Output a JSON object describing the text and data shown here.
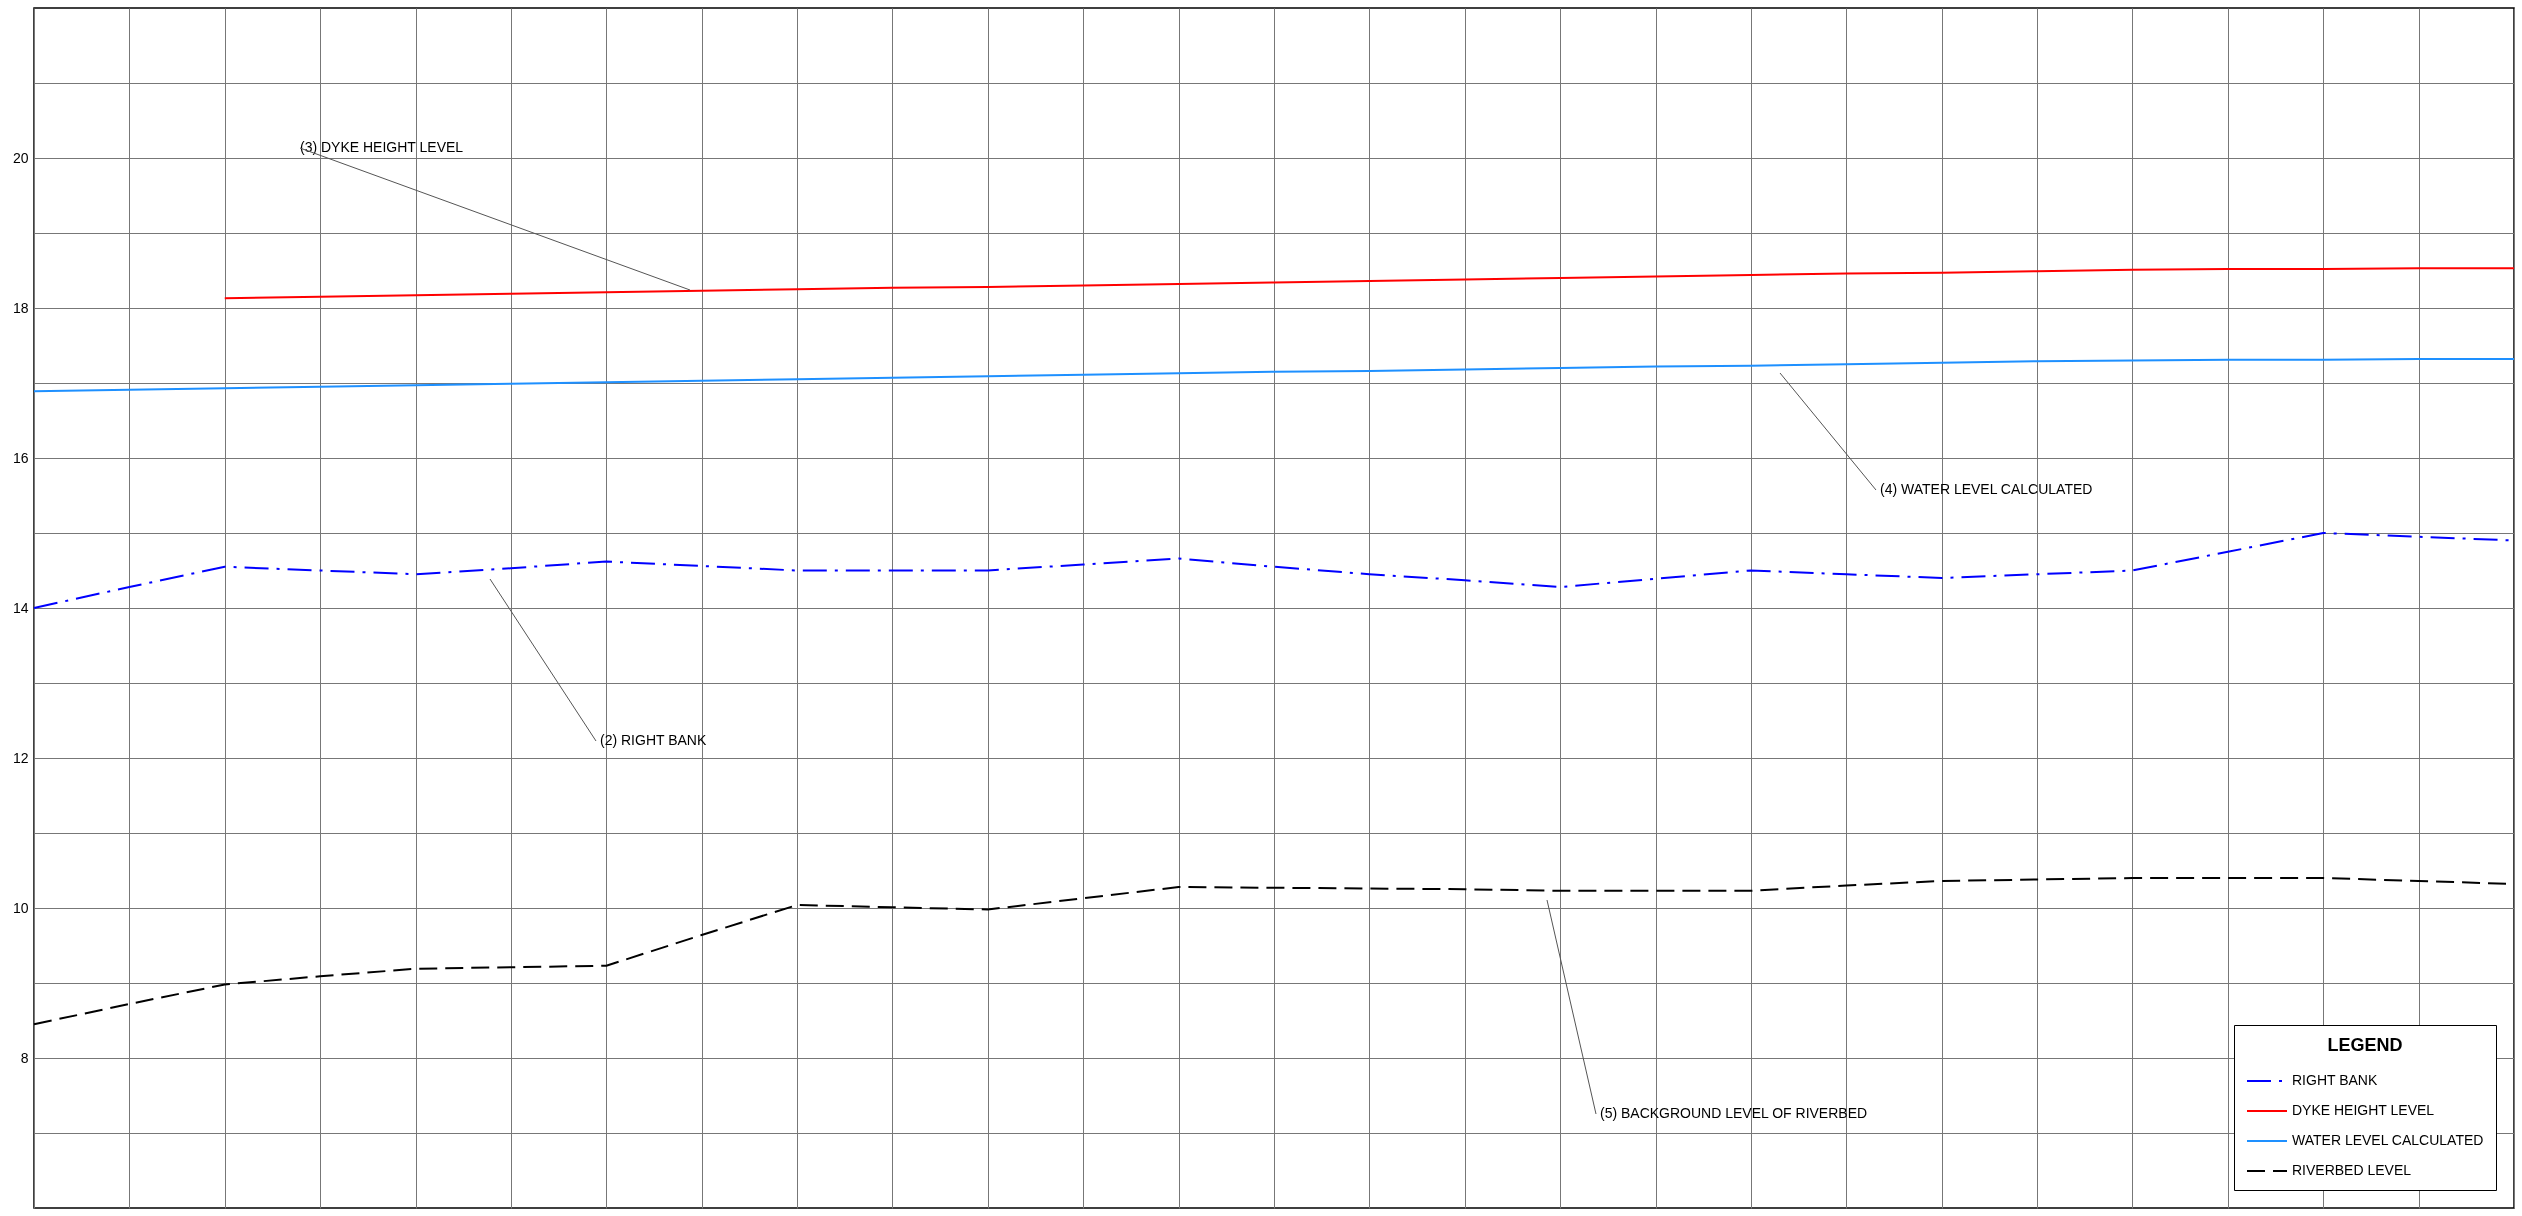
{
  "chart_data": {
    "type": "line",
    "legend_title": "LEGEND",
    "categories": [
      null,
      null,
      null,
      null,
      null,
      null,
      null,
      null,
      null,
      null,
      null,
      null,
      null,
      null,
      null,
      null,
      null,
      null,
      null,
      null,
      null,
      null,
      null,
      null,
      null,
      null,
      null
    ],
    "series": [
      {
        "name": "RIGHT BANK",
        "color": "#0000ff",
        "line_style": "dashdot",
        "values": [
          14.0,
          14.28,
          14.55,
          14.5,
          14.45,
          14.53,
          14.62,
          14.56,
          14.5,
          14.5,
          14.5,
          14.58,
          14.66,
          14.55,
          14.45,
          14.37,
          14.28,
          14.39,
          14.5,
          14.45,
          14.4,
          14.45,
          14.5,
          14.75,
          15.0,
          14.95,
          14.9
        ]
      },
      {
        "name": "DYKE HEIGHT LEVEL",
        "color": "#ff0000",
        "line_style": "solid",
        "values": [
          null,
          null,
          18.13,
          18.15,
          18.17,
          18.19,
          18.21,
          18.23,
          18.25,
          18.27,
          18.28,
          18.3,
          18.32,
          18.34,
          18.36,
          18.38,
          18.4,
          18.42,
          18.44,
          18.46,
          18.47,
          18.49,
          18.51,
          18.52,
          18.52,
          18.53,
          18.53
        ]
      },
      {
        "name": "WATER LEVEL CALCULATED",
        "color": "#1e90ff",
        "line_style": "solid",
        "values": [
          16.89,
          16.91,
          16.93,
          16.95,
          16.97,
          16.99,
          17.01,
          17.03,
          17.05,
          17.07,
          17.09,
          17.11,
          17.13,
          17.15,
          17.16,
          17.18,
          17.2,
          17.22,
          17.23,
          17.25,
          17.27,
          17.29,
          17.3,
          17.31,
          17.31,
          17.32,
          17.32
        ]
      },
      {
        "name": "RIVERBED LEVEL",
        "color": "#000000",
        "line_style": "dashed",
        "values": [
          8.45,
          8.72,
          8.98,
          9.09,
          9.19,
          9.21,
          9.23,
          9.64,
          10.04,
          10.01,
          9.98,
          10.13,
          10.28,
          10.27,
          10.26,
          10.25,
          10.23,
          10.23,
          10.23,
          10.3,
          10.36,
          10.38,
          10.4,
          10.4,
          10.4,
          10.36,
          10.32
        ]
      }
    ],
    "ylim": [
      6,
      22
    ],
    "yticks": [
      {
        "value": 7,
        "label": null
      },
      8,
      {
        "value": 9,
        "label": null
      },
      10,
      {
        "value": 11,
        "label": null
      },
      12,
      {
        "value": 13,
        "label": null
      },
      14,
      {
        "value": 15,
        "label": null
      },
      16,
      {
        "value": 17,
        "label": null
      },
      18,
      {
        "value": 19,
        "label": null
      },
      20,
      {
        "value": 21,
        "label": null
      }
    ],
    "grid": true,
    "legend": "bottom right",
    "tick_labels": "y",
    "marker": "none",
    "annotations": [
      "(3) DYKE HEIGHT LEVEL",
      "(2) RIGHT BANK",
      "(4) WATER LEVEL CALCULATED",
      "(5) BACKGROUND LEVEL OF RIVERBED"
    ]
  }
}
